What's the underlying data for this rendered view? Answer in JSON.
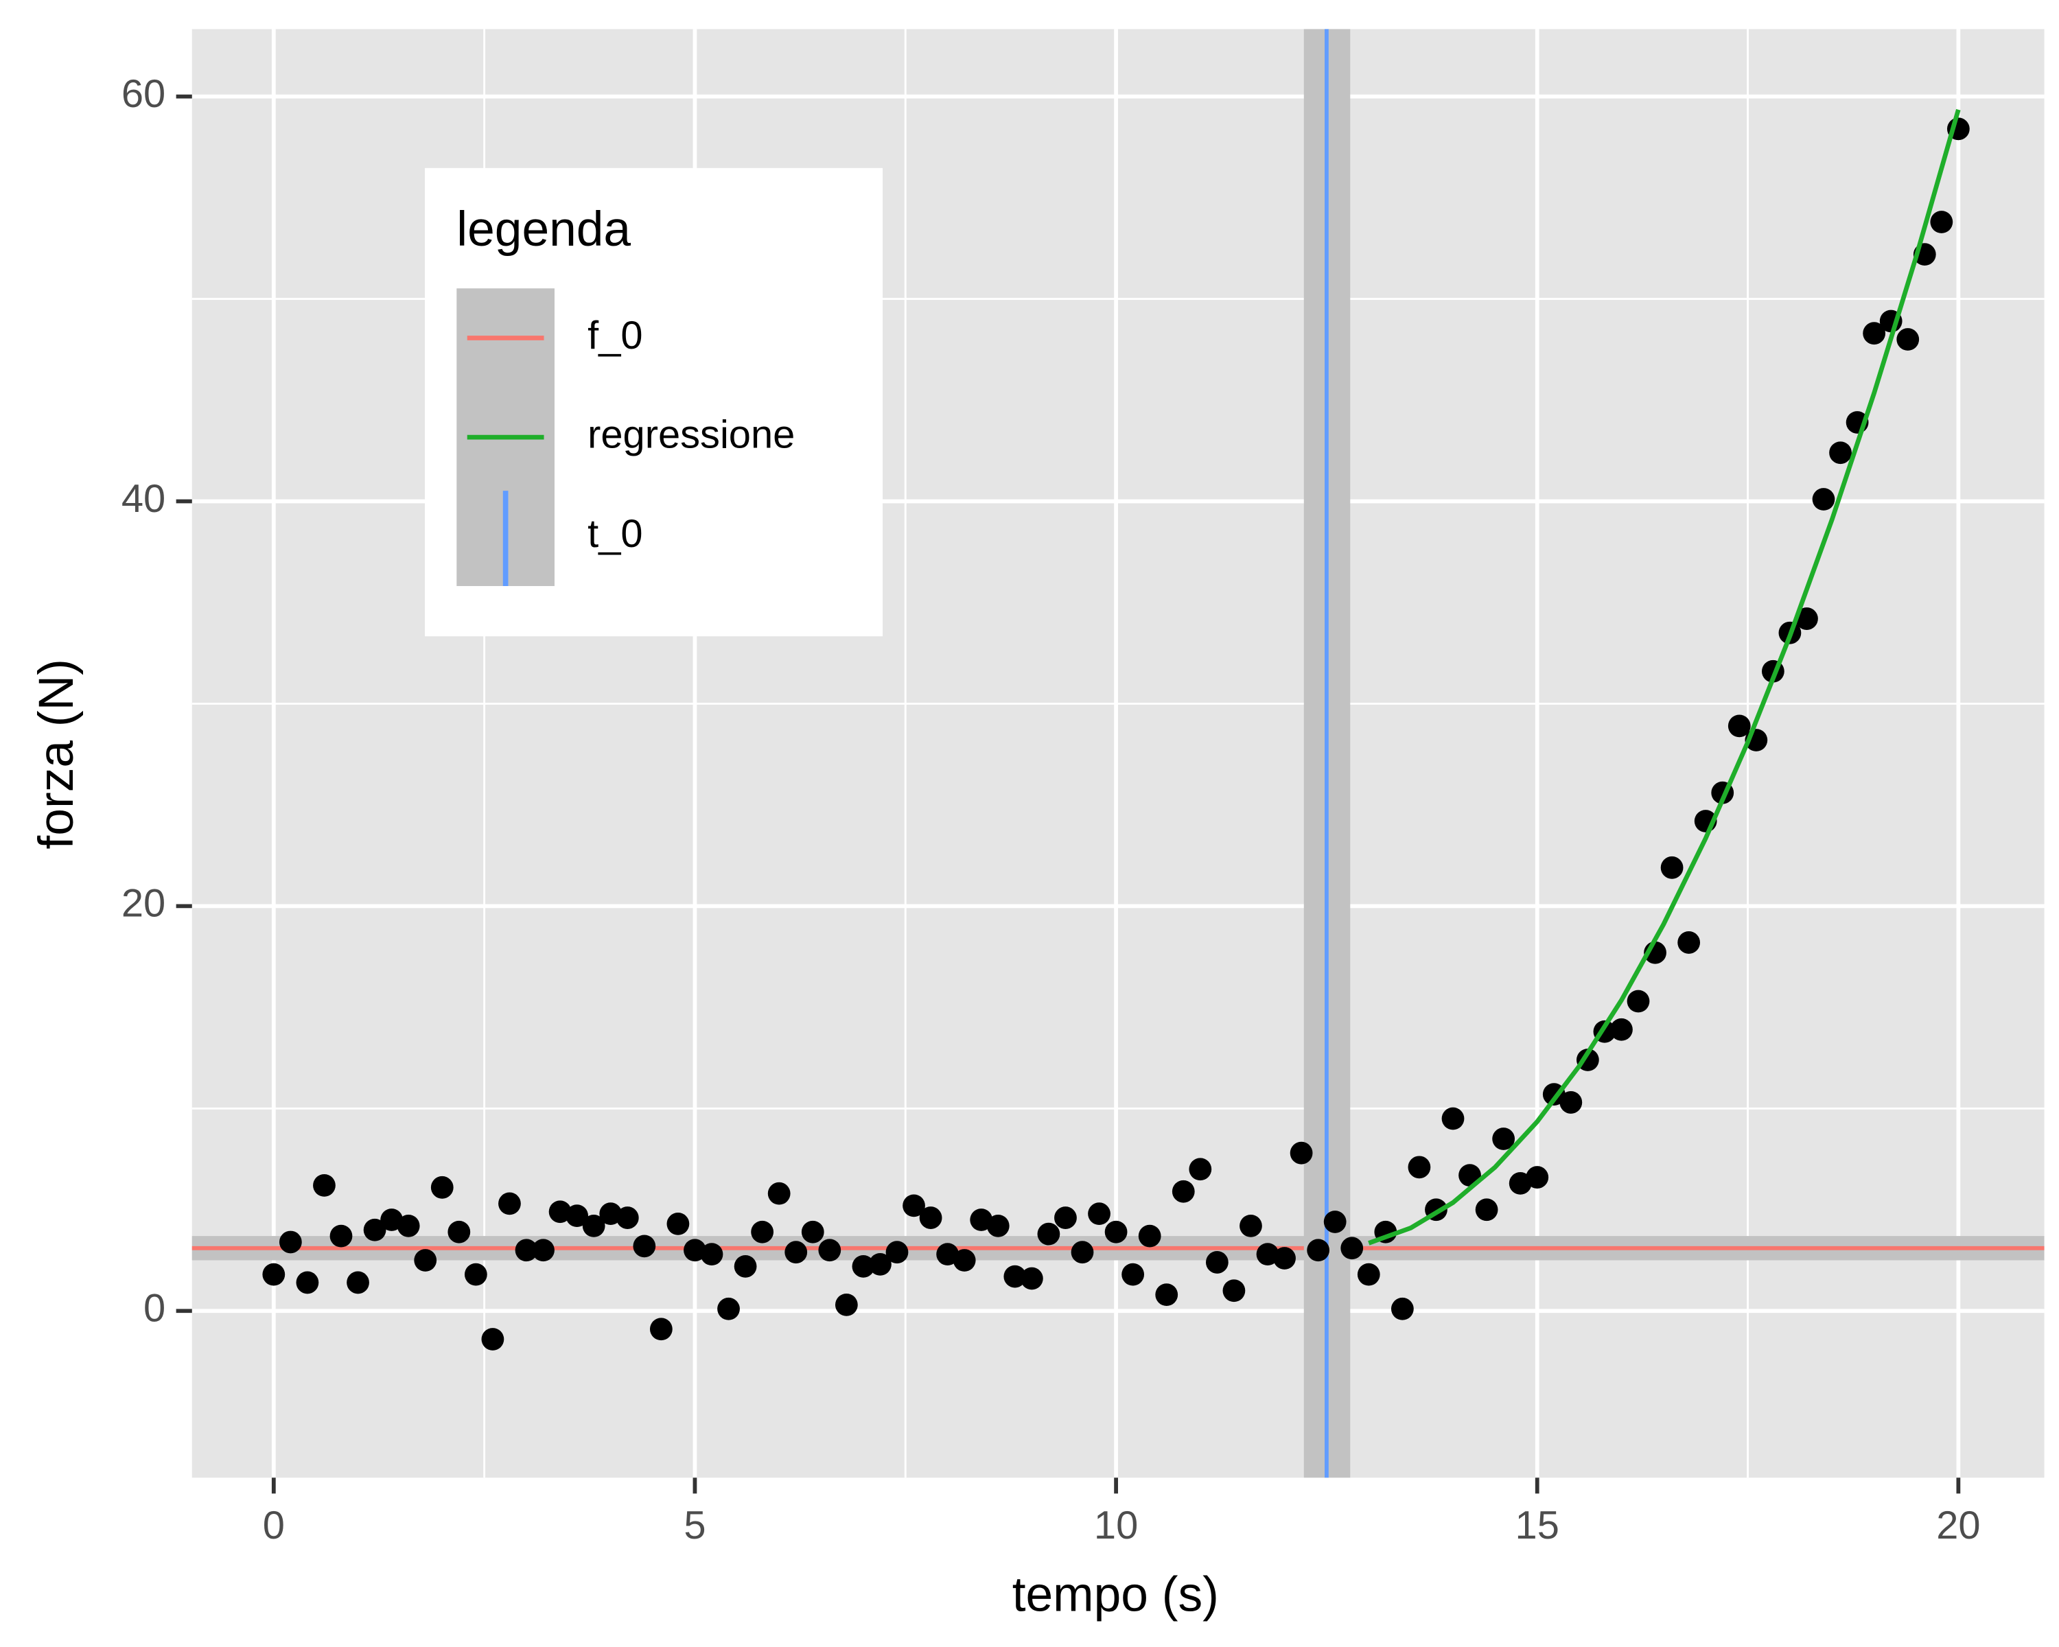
{
  "chart_data": {
    "type": "scatter",
    "xlabel": "tempo (s)",
    "ylabel": "forza (N)",
    "xlim": [
      -0.97,
      21.02
    ],
    "ylim": [
      -8.24,
      63.33
    ],
    "xticks": [
      0,
      5,
      10,
      15,
      20
    ],
    "yticks": [
      0,
      20,
      40,
      60
    ],
    "x_minor_grid": [
      2.5,
      7.5,
      12.5,
      17.5
    ],
    "y_minor_grid": [
      10,
      30,
      50
    ],
    "grid": true,
    "band_color": "#c2c2c2",
    "points": {
      "color": "#000000",
      "x": [
        0,
        0.2,
        0.4,
        0.6,
        0.8,
        1,
        1.2,
        1.4,
        1.6,
        1.8,
        2,
        2.2,
        2.4,
        2.6,
        2.8,
        3,
        3.2,
        3.4,
        3.6,
        3.8,
        4,
        4.2,
        4.4,
        4.6,
        4.8,
        5,
        5.2,
        5.4,
        5.6,
        5.8,
        6,
        6.2,
        6.4,
        6.6,
        6.8,
        7,
        7.2,
        7.4,
        7.6,
        7.8,
        8,
        8.2,
        8.4,
        8.6,
        8.8,
        9,
        9.2,
        9.4,
        9.6,
        9.8,
        10,
        10.2,
        10.4,
        10.6,
        10.8,
        11,
        11.2,
        11.4,
        11.6,
        11.8,
        12,
        12.2,
        12.4,
        12.6,
        12.8,
        13,
        13.2,
        13.4,
        13.6,
        13.8,
        14,
        14.2,
        14.4,
        14.6,
        14.8,
        15,
        15.2,
        15.4,
        15.6,
        15.8,
        16,
        16.2,
        16.4,
        16.6,
        16.8,
        17,
        17.2,
        17.4,
        17.6,
        17.8,
        18,
        18.2,
        18.4,
        18.6,
        18.8,
        19,
        19.2,
        19.4,
        19.6,
        19.8,
        20
      ],
      "values": [
        1.8,
        3.4,
        1.4,
        6.2,
        3.7,
        1.4,
        4.0,
        4.5,
        4.2,
        2.5,
        6.1,
        3.9,
        1.8,
        -1.4,
        5.3,
        3.0,
        3.0,
        4.9,
        4.7,
        4.2,
        4.8,
        4.6,
        3.2,
        -0.9,
        4.3,
        3.0,
        2.8,
        0.1,
        2.2,
        3.9,
        5.8,
        2.9,
        3.9,
        3.0,
        0.3,
        2.2,
        2.3,
        2.9,
        5.2,
        4.6,
        2.8,
        2.5,
        4.5,
        4.2,
        1.7,
        1.6,
        3.8,
        4.6,
        2.9,
        4.8,
        3.9,
        1.8,
        3.7,
        0.8,
        5.9,
        7.0,
        2.4,
        1.0,
        4.2,
        2.8,
        2.6,
        7.8,
        3.0,
        4.4,
        3.1,
        1.8,
        3.9,
        0.1,
        7.1,
        5.0,
        9.5,
        6.7,
        5.0,
        8.5,
        6.3,
        6.6,
        10.7,
        10.3,
        12.4,
        13.8,
        13.9,
        15.3,
        17.7,
        21.9,
        18.2,
        24.2,
        25.6,
        28.9,
        28.2,
        31.6,
        33.5,
        34.2,
        40.1,
        42.4,
        43.9,
        48.3,
        48.9,
        48.0,
        52.2,
        53.8,
        58.4
      ]
    },
    "series": [
      {
        "name": "f_0",
        "type": "hline",
        "color": "#f8766d",
        "value": 3.1,
        "band": [
          2.5,
          3.7
        ]
      },
      {
        "name": "regressione",
        "type": "line",
        "color": "#1fae2a",
        "x": [
          13,
          13.5,
          14,
          14.5,
          15,
          15.5,
          16,
          16.5,
          17,
          17.5,
          18,
          18.5,
          19,
          19.5,
          20
        ],
        "values": [
          3.35,
          4.1,
          5.35,
          7.1,
          9.35,
          12.1,
          15.35,
          19.1,
          23.35,
          28.1,
          33.35,
          39.1,
          45.35,
          52.1,
          59.35
        ]
      },
      {
        "name": "t_0",
        "type": "vline",
        "color": "#619cff",
        "value": 12.5,
        "band": [
          12.23,
          12.78
        ]
      }
    ],
    "legend": {
      "title": "legenda",
      "position": "top-left"
    }
  }
}
